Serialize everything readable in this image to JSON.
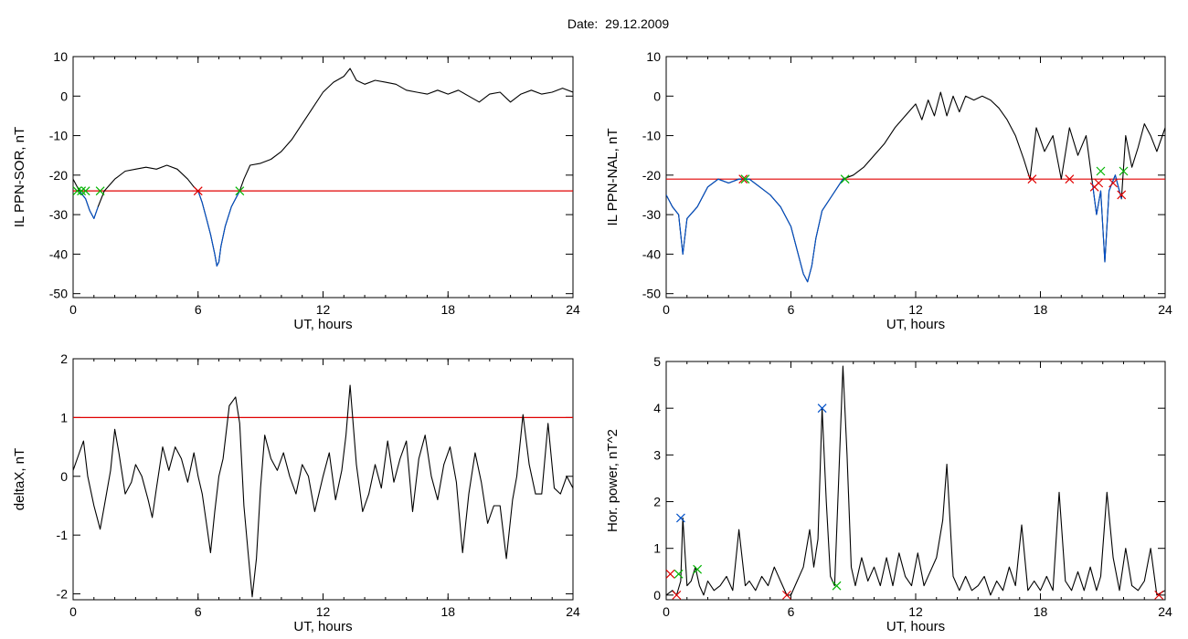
{
  "figure": {
    "title": "Date:  29.12.2009"
  },
  "colors": {
    "trace": "#000000",
    "blue_trace": "#0050c8",
    "threshold": "#e00000",
    "cross_red": "#e00000",
    "cross_green": "#00b400",
    "cross_blue": "#0050c8"
  },
  "chart_data": [
    {
      "id": "top-left",
      "type": "line",
      "title": "",
      "xlabel": "UT, hours",
      "ylabel": "IL PPN-SOR, nT",
      "xlim": [
        0,
        24
      ],
      "ylim": [
        -51,
        10
      ],
      "xticks": [
        0,
        6,
        12,
        18,
        24
      ],
      "yticks": [
        -50,
        -40,
        -30,
        -20,
        -10,
        0,
        10
      ],
      "threshold": -24,
      "series": [
        {
          "color": "black",
          "x": [
            0,
            0.3,
            0.6,
            0.8,
            1.0,
            1.2,
            1.5,
            2.0,
            2.5,
            3.0,
            3.5,
            4.0,
            4.5,
            5.0,
            5.5,
            5.8,
            6.0,
            6.2,
            6.4,
            6.6,
            6.8,
            6.9,
            7.0,
            7.1,
            7.3,
            7.6,
            8.0,
            8.2,
            8.5,
            9.0,
            9.5,
            10.0,
            10.5,
            11.0,
            11.5,
            12.0,
            12.5,
            13.0,
            13.3,
            13.6,
            14.0,
            14.5,
            15.0,
            15.5,
            16.0,
            16.5,
            17.0,
            17.5,
            18.0,
            18.5,
            19.0,
            19.5,
            20.0,
            20.5,
            21.0,
            21.5,
            22.0,
            22.5,
            23.0,
            23.5,
            24.0
          ],
          "y": [
            -21,
            -24,
            -26,
            -29,
            -31,
            -28,
            -24,
            -21,
            -19,
            -18.5,
            -18,
            -18.5,
            -17.5,
            -18.5,
            -21,
            -23,
            -24,
            -27,
            -31,
            -35,
            -40,
            -43,
            -42,
            -38,
            -33,
            -28,
            -24,
            -21,
            -17.5,
            -17,
            -16,
            -14,
            -11,
            -7,
            -3,
            1,
            3.5,
            5,
            7,
            4,
            3,
            4,
            3.5,
            3,
            1.5,
            1,
            0.5,
            1.5,
            0.5,
            1.5,
            0,
            -1.5,
            0.5,
            1,
            -1.5,
            0.5,
            1.5,
            0.5,
            1,
            2,
            1
          ]
        },
        {
          "color": "blue",
          "x": [
            6.0,
            6.2,
            6.4,
            6.6,
            6.8,
            6.9,
            7.0,
            7.1,
            7.3,
            7.6,
            8.0
          ],
          "y": [
            -24,
            -27,
            -31,
            -35,
            -40,
            -43,
            -42,
            -38,
            -33,
            -28,
            -24
          ]
        },
        {
          "color": "blue",
          "x": [
            0.3,
            0.6,
            0.8,
            1.0,
            1.2
          ],
          "y": [
            -24,
            -26,
            -29,
            -31,
            -28
          ]
        }
      ],
      "markers": [
        {
          "x": 0.2,
          "y": -24,
          "color": "green"
        },
        {
          "x": 0.4,
          "y": -24,
          "color": "green"
        },
        {
          "x": 0.6,
          "y": -24,
          "color": "green"
        },
        {
          "x": 1.3,
          "y": -24,
          "color": "green"
        },
        {
          "x": 6.0,
          "y": -24,
          "color": "red"
        },
        {
          "x": 8.0,
          "y": -24,
          "color": "green"
        }
      ]
    },
    {
      "id": "top-right",
      "type": "line",
      "title": "",
      "xlabel": "UT, hours",
      "ylabel": "IL PPN-NAL, nT",
      "xlim": [
        0,
        24
      ],
      "ylim": [
        -51,
        10
      ],
      "xticks": [
        0,
        6,
        12,
        18,
        24
      ],
      "yticks": [
        -50,
        -40,
        -30,
        -20,
        -10,
        0,
        10
      ],
      "threshold": -21,
      "series": [
        {
          "color": "black",
          "x": [
            0,
            0.3,
            0.6,
            0.8,
            1.0,
            1.5,
            2.0,
            2.5,
            3.0,
            3.5,
            4.0,
            4.5,
            5.0,
            5.5,
            6.0,
            6.3,
            6.6,
            6.8,
            7.0,
            7.2,
            7.5,
            8.0,
            8.5,
            9.0,
            9.5,
            10.0,
            10.5,
            11.0,
            11.5,
            12.0,
            12.3,
            12.6,
            12.9,
            13.2,
            13.5,
            13.8,
            14.1,
            14.4,
            14.8,
            15.2,
            15.6,
            16.0,
            16.4,
            16.8,
            17.2,
            17.5,
            17.8,
            18.2,
            18.6,
            19.0,
            19.4,
            19.8,
            20.2,
            20.5,
            20.7,
            20.9,
            21.1,
            21.3,
            21.6,
            21.9,
            22.1,
            22.4,
            22.7,
            23.0,
            23.3,
            23.6,
            24.0
          ],
          "y": [
            -25,
            -28,
            -30,
            -40,
            -31,
            -28,
            -23,
            -21,
            -22,
            -21,
            -21,
            -23,
            -25,
            -28,
            -33,
            -39,
            -45,
            -47,
            -43,
            -36,
            -29,
            -25,
            -21,
            -20,
            -18,
            -15,
            -12,
            -8,
            -5,
            -2,
            -6,
            -1,
            -5,
            1,
            -5,
            0,
            -4,
            0,
            -1,
            0,
            -1,
            -3,
            -6,
            -10,
            -16,
            -21,
            -8,
            -14,
            -10,
            -21,
            -8,
            -15,
            -10,
            -22,
            -30,
            -24,
            -42,
            -24,
            -20,
            -26,
            -10,
            -18,
            -13,
            -7,
            -10,
            -14,
            -8
          ]
        },
        {
          "color": "blue",
          "x": [
            0,
            0.3,
            0.6,
            0.8,
            1.0,
            1.5,
            2.0,
            2.5,
            3.0,
            3.5,
            4.0,
            4.5,
            5.0,
            5.5,
            6.0,
            6.3,
            6.6,
            6.8,
            7.0,
            7.2,
            7.5,
            8.0,
            8.5
          ],
          "y": [
            -25,
            -28,
            -30,
            -40,
            -31,
            -28,
            -23,
            -21,
            -22,
            -21,
            -21,
            -23,
            -25,
            -28,
            -33,
            -39,
            -45,
            -47,
            -43,
            -36,
            -29,
            -25,
            -21
          ]
        },
        {
          "color": "blue",
          "x": [
            20.5,
            20.7,
            20.9,
            21.1,
            21.3,
            21.6,
            21.9
          ],
          "y": [
            -22,
            -30,
            -24,
            -42,
            -24,
            -20,
            -26
          ]
        }
      ],
      "markers": [
        {
          "x": 3.7,
          "y": -21,
          "color": "red"
        },
        {
          "x": 3.8,
          "y": -21,
          "color": "green"
        },
        {
          "x": 8.6,
          "y": -21,
          "color": "green"
        },
        {
          "x": 17.6,
          "y": -21,
          "color": "red"
        },
        {
          "x": 19.4,
          "y": -21,
          "color": "red"
        },
        {
          "x": 20.6,
          "y": -23,
          "color": "red"
        },
        {
          "x": 20.8,
          "y": -22,
          "color": "red"
        },
        {
          "x": 20.9,
          "y": -19,
          "color": "green"
        },
        {
          "x": 21.5,
          "y": -22,
          "color": "red"
        },
        {
          "x": 21.9,
          "y": -25,
          "color": "red"
        },
        {
          "x": 22.0,
          "y": -19,
          "color": "green"
        }
      ]
    },
    {
      "id": "bottom-left",
      "type": "line",
      "title": "",
      "xlabel": "UT, hours",
      "ylabel": "deltaX, nT",
      "xlim": [
        0,
        24
      ],
      "ylim": [
        -2.1,
        2
      ],
      "xticks": [
        0,
        6,
        12,
        18,
        24
      ],
      "yticks": [
        -2,
        -1,
        0,
        1,
        2
      ],
      "threshold": 1,
      "series": [
        {
          "color": "black",
          "x": [
            0,
            0.3,
            0.5,
            0.7,
            1.0,
            1.3,
            1.5,
            1.8,
            2.0,
            2.2,
            2.5,
            2.8,
            3.0,
            3.3,
            3.6,
            3.8,
            4.0,
            4.3,
            4.6,
            4.9,
            5.2,
            5.5,
            5.8,
            6.0,
            6.2,
            6.4,
            6.6,
            6.8,
            7.0,
            7.2,
            7.5,
            7.8,
            8.0,
            8.2,
            8.4,
            8.6,
            8.8,
            9.0,
            9.2,
            9.5,
            9.8,
            10.1,
            10.4,
            10.7,
            11.0,
            11.3,
            11.6,
            12.0,
            12.3,
            12.6,
            12.9,
            13.1,
            13.3,
            13.6,
            13.9,
            14.2,
            14.5,
            14.8,
            15.1,
            15.4,
            15.7,
            16.0,
            16.3,
            16.6,
            16.9,
            17.2,
            17.5,
            17.8,
            18.1,
            18.4,
            18.7,
            19.0,
            19.3,
            19.6,
            19.9,
            20.2,
            20.5,
            20.8,
            21.1,
            21.3,
            21.6,
            21.9,
            22.2,
            22.5,
            22.8,
            23.1,
            23.4,
            23.7,
            24.0
          ],
          "y": [
            0.1,
            0.4,
            0.6,
            0.0,
            -0.5,
            -0.9,
            -0.5,
            0.1,
            0.8,
            0.4,
            -0.3,
            -0.1,
            0.2,
            0.0,
            -0.4,
            -0.7,
            -0.2,
            0.5,
            0.1,
            0.5,
            0.3,
            -0.1,
            0.4,
            0.0,
            -0.3,
            -0.8,
            -1.3,
            -0.6,
            0.0,
            0.3,
            1.2,
            1.35,
            0.9,
            -0.5,
            -1.3,
            -2.05,
            -1.4,
            -0.2,
            0.7,
            0.3,
            0.1,
            0.4,
            0.0,
            -0.3,
            0.2,
            0.0,
            -0.6,
            0.0,
            0.4,
            -0.4,
            0.1,
            0.7,
            1.55,
            0.2,
            -0.6,
            -0.3,
            0.2,
            -0.2,
            0.6,
            -0.1,
            0.3,
            0.6,
            -0.6,
            0.3,
            0.7,
            0.0,
            -0.4,
            0.2,
            0.5,
            -0.1,
            -1.3,
            -0.3,
            0.4,
            -0.1,
            -0.8,
            -0.5,
            -0.5,
            -1.4,
            -0.4,
            0.0,
            1.05,
            0.2,
            -0.3,
            -0.3,
            0.9,
            -0.2,
            -0.3,
            0.0,
            -0.2
          ]
        }
      ],
      "markers": []
    },
    {
      "id": "bottom-right",
      "type": "line",
      "title": "",
      "xlabel": "UT, hours",
      "ylabel": "Hor. power, nT^2",
      "xlim": [
        0,
        24
      ],
      "ylim": [
        -0.1,
        5
      ],
      "xticks": [
        0,
        6,
        12,
        18,
        24
      ],
      "yticks": [
        0,
        1,
        2,
        3,
        4,
        5
      ],
      "threshold": null,
      "series": [
        {
          "color": "black",
          "x": [
            0,
            0.3,
            0.5,
            0.7,
            0.8,
            1.0,
            1.2,
            1.4,
            1.6,
            1.8,
            2.0,
            2.3,
            2.6,
            2.9,
            3.2,
            3.5,
            3.8,
            4.0,
            4.3,
            4.6,
            4.9,
            5.2,
            5.5,
            5.8,
            6.0,
            6.3,
            6.6,
            6.9,
            7.1,
            7.3,
            7.5,
            7.7,
            7.9,
            8.1,
            8.3,
            8.5,
            8.7,
            8.9,
            9.1,
            9.4,
            9.7,
            10.0,
            10.3,
            10.6,
            10.9,
            11.2,
            11.5,
            11.8,
            12.1,
            12.4,
            12.7,
            13.0,
            13.3,
            13.5,
            13.8,
            14.1,
            14.4,
            14.7,
            15.0,
            15.3,
            15.6,
            15.9,
            16.2,
            16.5,
            16.8,
            17.1,
            17.4,
            17.7,
            18.0,
            18.3,
            18.6,
            18.9,
            19.2,
            19.5,
            19.8,
            20.1,
            20.4,
            20.7,
            20.9,
            21.2,
            21.5,
            21.8,
            22.1,
            22.4,
            22.7,
            23.0,
            23.3,
            23.6,
            24.0
          ],
          "y": [
            0.0,
            0.1,
            0.0,
            0.3,
            1.65,
            0.2,
            0.3,
            0.6,
            0.2,
            0.0,
            0.3,
            0.1,
            0.2,
            0.4,
            0.1,
            1.4,
            0.2,
            0.3,
            0.1,
            0.4,
            0.2,
            0.6,
            0.3,
            0.0,
            0.0,
            0.3,
            0.6,
            1.4,
            0.6,
            1.2,
            4.0,
            2.0,
            0.4,
            0.2,
            2.5,
            4.9,
            3.0,
            0.6,
            0.2,
            0.8,
            0.3,
            0.6,
            0.2,
            0.8,
            0.2,
            0.9,
            0.4,
            0.2,
            0.9,
            0.2,
            0.5,
            0.8,
            1.6,
            2.8,
            0.4,
            0.1,
            0.4,
            0.1,
            0.2,
            0.4,
            0.0,
            0.3,
            0.1,
            0.6,
            0.2,
            1.5,
            0.1,
            0.3,
            0.1,
            0.4,
            0.1,
            2.2,
            0.3,
            0.1,
            0.5,
            0.1,
            0.6,
            0.1,
            0.4,
            2.2,
            0.8,
            0.1,
            1.0,
            0.2,
            0.1,
            0.3,
            1.0,
            0.0,
            0.1
          ]
        }
      ],
      "markers": [
        {
          "x": 0.2,
          "y": 0.45,
          "color": "red"
        },
        {
          "x": 0.5,
          "y": 0.0,
          "color": "red"
        },
        {
          "x": 0.6,
          "y": 0.45,
          "color": "green"
        },
        {
          "x": 0.7,
          "y": 1.65,
          "color": "blue"
        },
        {
          "x": 1.5,
          "y": 0.55,
          "color": "green"
        },
        {
          "x": 5.8,
          "y": 0.0,
          "color": "red"
        },
        {
          "x": 7.5,
          "y": 4.0,
          "color": "blue"
        },
        {
          "x": 8.2,
          "y": 0.2,
          "color": "green"
        },
        {
          "x": 23.7,
          "y": 0.0,
          "color": "red"
        }
      ]
    }
  ]
}
